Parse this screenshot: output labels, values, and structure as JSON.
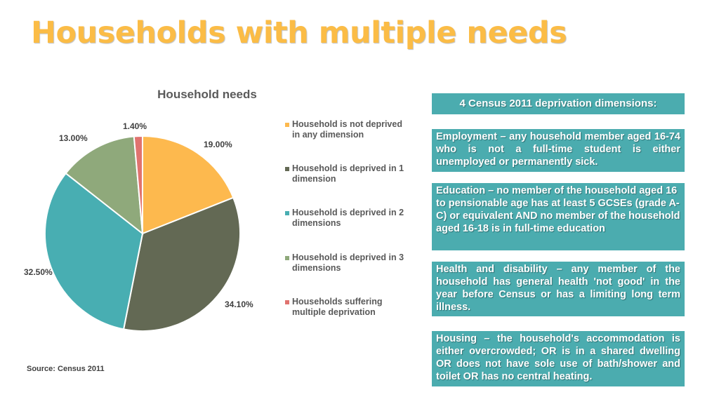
{
  "title": "Households with multiple needs",
  "source": "Source: Census 2011",
  "colors": {
    "title": "#fbbc46",
    "panel": "#4bacaf"
  },
  "chart_data": {
    "type": "pie",
    "title": "Household needs",
    "legend_position": "right",
    "series": [
      {
        "name": "Household is not deprived in any dimension",
        "value": 19.0,
        "label": "19.00%",
        "color": "#fdb94e"
      },
      {
        "name": "Household is deprived in 1 dimension",
        "value": 34.1,
        "label": "34.10%",
        "color": "#636954"
      },
      {
        "name": "Household is deprived in 2 dimensions",
        "value": 32.5,
        "label": "32.50%",
        "color": "#48aeb2"
      },
      {
        "name": "Household is deprived in 3 dimensions",
        "value": 13.0,
        "label": "13.00%",
        "color": "#8fa97b"
      },
      {
        "name": "Households suffering multiple deprivation",
        "value": 1.4,
        "label": "1.40%",
        "color": "#e0736f"
      }
    ]
  },
  "panels": {
    "header": "4 Census 2011 deprivation dimensions:",
    "employment": "Employment – any household member aged 16-74 who is not a full-time student is either unemployed or permanently sick.",
    "education": "Education – no member of the household aged 16 to pensionable age has at least 5 GCSEs (grade A-C) or equivalent AND no member of the household aged 16-18 is in full-time education",
    "health": "Health and disability – any member of the household has general health 'not good' in the year before Census or has a limiting long term illness.",
    "housing": "Housing – the household's accommodation is either overcrowded; OR is in a shared dwelling OR does not have sole use of bath/shower and toilet OR has no central heating."
  }
}
